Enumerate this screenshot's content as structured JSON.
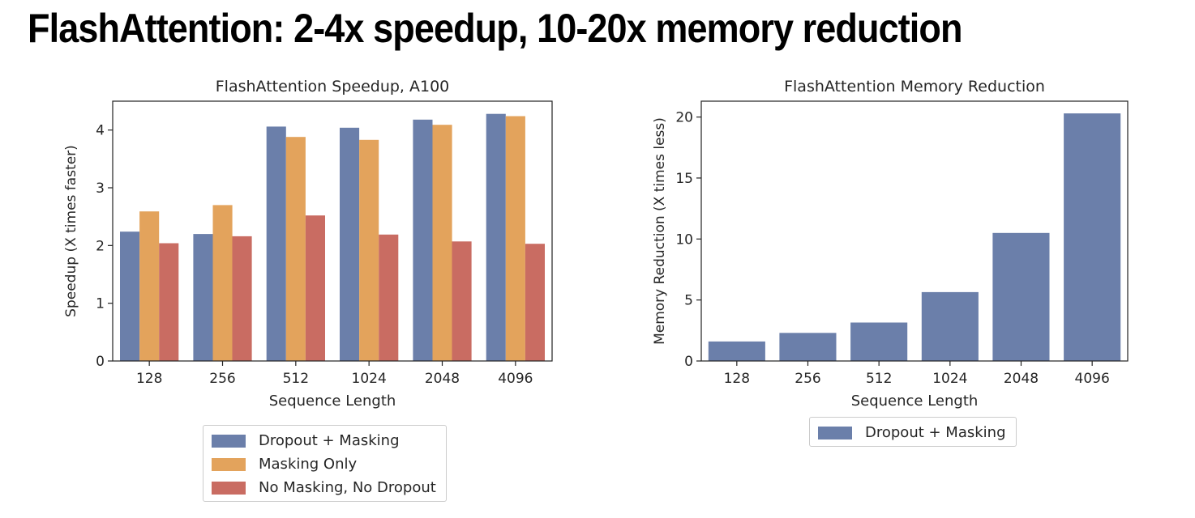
{
  "page": {
    "title": "FlashAttention: 2-4x speedup, 10-20x memory reduction"
  },
  "chart_data": [
    {
      "type": "bar",
      "title": "FlashAttention Speedup, A100",
      "xlabel": "Sequence Length",
      "ylabel": "Speedup (X times faster)",
      "categories": [
        "128",
        "256",
        "512",
        "1024",
        "2048",
        "4096"
      ],
      "ylim": [
        0,
        4.5
      ],
      "yticks": [
        0,
        1,
        2,
        3,
        4
      ],
      "grid": false,
      "legend_position": "below",
      "series": [
        {
          "name": "Dropout + Masking",
          "color": "#6B7FAA",
          "values": [
            2.24,
            2.2,
            4.06,
            4.04,
            4.18,
            4.28
          ]
        },
        {
          "name": "Masking Only",
          "color": "#E3A35C",
          "values": [
            2.59,
            2.7,
            3.88,
            3.83,
            4.09,
            4.24
          ]
        },
        {
          "name": "No Masking, No Dropout",
          "color": "#C96C62",
          "values": [
            2.04,
            2.16,
            2.52,
            2.19,
            2.07,
            2.03
          ]
        }
      ]
    },
    {
      "type": "bar",
      "title": "FlashAttention Memory Reduction",
      "xlabel": "Sequence Length",
      "ylabel": "Memory Reduction (X times less)",
      "categories": [
        "128",
        "256",
        "512",
        "1024",
        "2048",
        "4096"
      ],
      "ylim": [
        0,
        21.3
      ],
      "yticks": [
        0,
        5,
        10,
        15,
        20
      ],
      "grid": false,
      "legend_position": "below",
      "series": [
        {
          "name": "Dropout + Masking",
          "color": "#6B7FAA",
          "values": [
            1.6,
            2.3,
            3.15,
            5.65,
            10.5,
            20.3
          ]
        }
      ]
    }
  ]
}
